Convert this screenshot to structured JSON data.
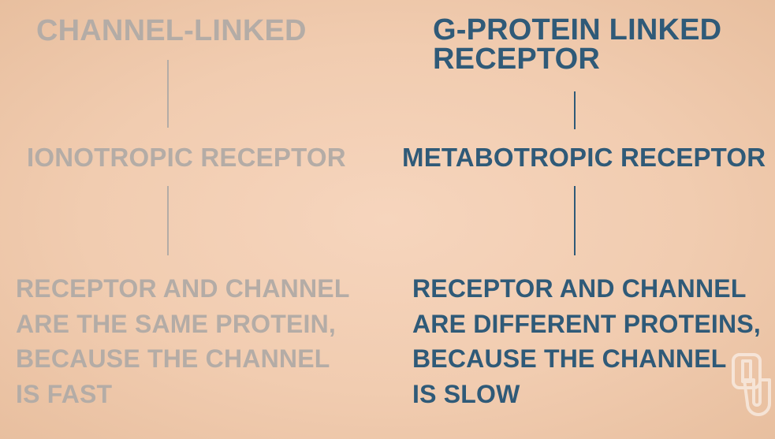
{
  "left": {
    "title": "CHANNEL-LINKED",
    "receptor": "IONOTROPIC RECEPTOR",
    "description": "RECEPTOR AND CHANNEL\nARE THE SAME PROTEIN,\nBECAUSE THE CHANNEL\nIS FAST",
    "color": "#b4aca6"
  },
  "right": {
    "title": "G-PROTEIN LINKED\nRECEPTOR",
    "receptor": "METABOTROPIC RECEPTOR",
    "description": "RECEPTOR AND CHANNEL\nARE DIFFERENT PROTEINS,\nBECAUSE THE CHANNEL\nIS SLOW",
    "color": "#2f5a78"
  },
  "background_color": "#f3cfb4",
  "watermark": {
    "icon": "ou-logo-icon"
  }
}
